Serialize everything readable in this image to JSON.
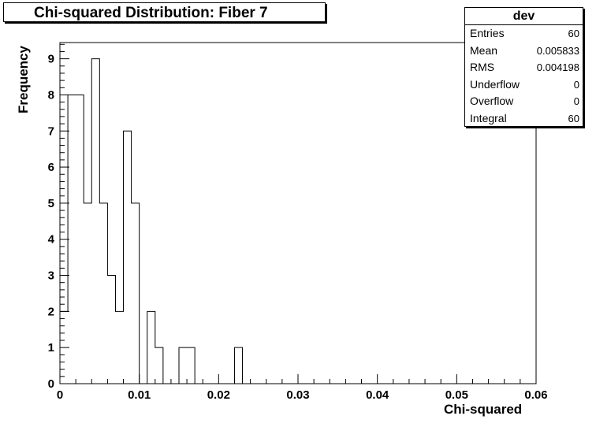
{
  "chart_data": {
    "type": "bar",
    "title": "Chi-squared Distribution: Fiber 7",
    "xlabel": "Chi-squared",
    "ylabel": "Frequency",
    "xlim": [
      0,
      0.06
    ],
    "ylim": [
      0,
      9.45
    ],
    "bin_width": 0.001,
    "x_ticks": [
      "0",
      "0.01",
      "0.02",
      "0.03",
      "0.04",
      "0.05",
      "0.06"
    ],
    "y_ticks": [
      "0",
      "1",
      "2",
      "3",
      "4",
      "5",
      "6",
      "7",
      "8",
      "9"
    ],
    "bins_low_edge": [
      0.0,
      0.001,
      0.002,
      0.003,
      0.004,
      0.005,
      0.006,
      0.007,
      0.008,
      0.009,
      0.01,
      0.011,
      0.012,
      0.013,
      0.014,
      0.015,
      0.016,
      0.017,
      0.018,
      0.019,
      0.02,
      0.021,
      0.022
    ],
    "counts": [
      2,
      8,
      8,
      5,
      9,
      5,
      3,
      2,
      7,
      5,
      0,
      2,
      1,
      0,
      0,
      1,
      1,
      0,
      0,
      0,
      0,
      0,
      1
    ],
    "grid": false,
    "legend": "top-right"
  },
  "stats": {
    "name": "dev",
    "rows": [
      {
        "label": "Entries",
        "value": "60"
      },
      {
        "label": "Mean",
        "value": "0.005833"
      },
      {
        "label": "RMS",
        "value": "0.004198"
      },
      {
        "label": "Underflow",
        "value": "0"
      },
      {
        "label": "Overflow",
        "value": "0"
      },
      {
        "label": "Integral",
        "value": "60"
      }
    ]
  }
}
